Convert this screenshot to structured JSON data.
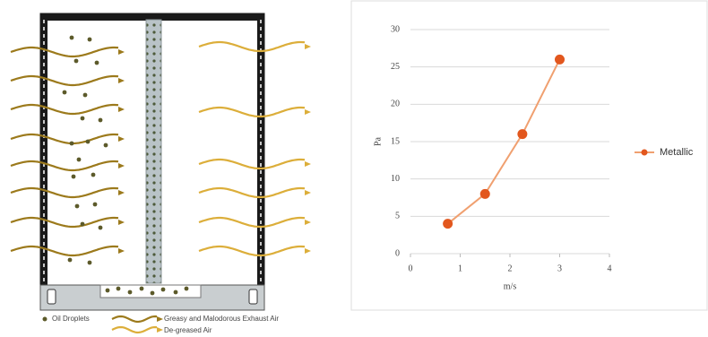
{
  "chart_data": {
    "type": "line",
    "x_label": "m/s",
    "y_label": "Pa",
    "x": [
      0.75,
      1.5,
      2.25,
      3
    ],
    "series": [
      {
        "name": "Metallic",
        "color": "#e2571e",
        "line_color": "#f0a070",
        "values": [
          4,
          8,
          16,
          26
        ]
      }
    ],
    "xlim": [
      0,
      4
    ],
    "xticks": [
      0,
      1,
      2,
      3,
      4
    ],
    "ylim": [
      0,
      30
    ],
    "yticks": [
      0,
      5,
      10,
      15,
      20,
      25,
      30
    ],
    "grid": true,
    "legend": "right"
  },
  "diagram": {
    "legend": [
      "Oil Droplets",
      "Greasy and Malodorous Exhaust Air",
      "De-greased Air"
    ]
  }
}
